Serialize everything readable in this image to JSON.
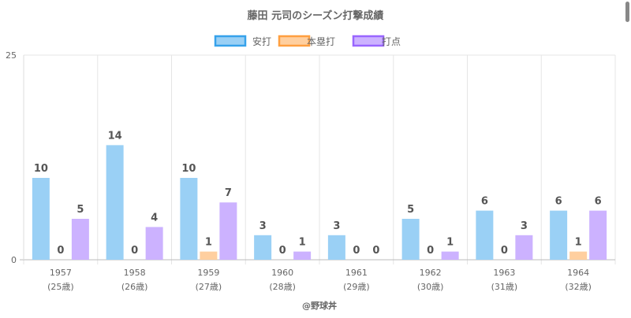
{
  "chart_data": {
    "type": "bar",
    "title": "藤田 元司のシーズン打撃成績",
    "categories": [
      "1957",
      "1958",
      "1959",
      "1960",
      "1961",
      "1962",
      "1963",
      "1964"
    ],
    "category_sublabels": [
      "(25歳)",
      "(26歳)",
      "(27歳)",
      "(28歳)",
      "(29歳)",
      "(30歳)",
      "(31歳)",
      "(32歳)"
    ],
    "series": [
      {
        "name": "安打",
        "values": [
          10,
          14,
          10,
          3,
          3,
          5,
          6,
          6
        ],
        "fill": "#9ad0f5",
        "stroke": "#36a2eb"
      },
      {
        "name": "本塁打",
        "values": [
          0,
          0,
          1,
          0,
          0,
          0,
          0,
          1
        ],
        "fill": "#ffcf9f",
        "stroke": "#ff9f40"
      },
      {
        "name": "打点",
        "values": [
          5,
          4,
          7,
          1,
          0,
          1,
          3,
          6
        ],
        "fill": "#ccb2ff",
        "stroke": "#9966ff"
      }
    ],
    "ylim": [
      0,
      25
    ],
    "yticks": [
      "0",
      "25"
    ],
    "grid": true,
    "legend": "top-center",
    "xlabel": "",
    "ylabel": "",
    "credit": "@野球丼"
  }
}
